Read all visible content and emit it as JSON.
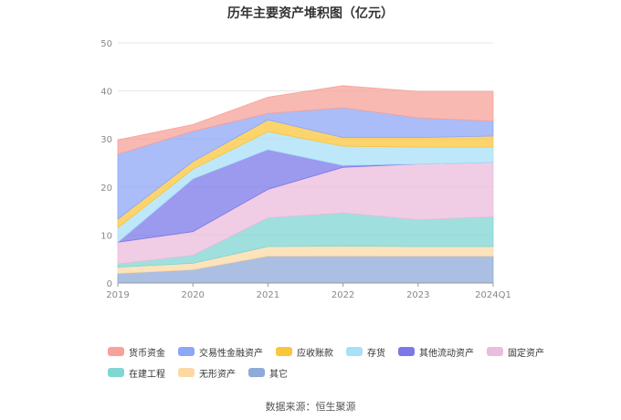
{
  "chart_data": {
    "type": "area",
    "stacked": true,
    "title": "历年主要资产堆积图（亿元）",
    "categories": [
      "2019",
      "2020",
      "2021",
      "2022",
      "2023",
      "2024Q1"
    ],
    "yticks": [
      0,
      10,
      20,
      30,
      40,
      50
    ],
    "ylim": [
      0,
      50
    ],
    "grid": true,
    "legend_position": "bottom",
    "series": [
      {
        "name": "其它",
        "color": "#8eaad8",
        "values": [
          2.0,
          2.8,
          5.6,
          5.6,
          5.6,
          5.6
        ]
      },
      {
        "name": "无形资产",
        "color": "#fcd9a4",
        "values": [
          1.3,
          1.3,
          2.0,
          2.1,
          2.0,
          2.0
        ]
      },
      {
        "name": "在建工程",
        "color": "#7fd6d3",
        "values": [
          0.7,
          1.7,
          6.0,
          6.9,
          5.6,
          6.2
        ]
      },
      {
        "name": "固定资产",
        "color": "#ecbcdc",
        "values": [
          4.5,
          4.9,
          5.9,
          9.5,
          11.6,
          11.3
        ]
      },
      {
        "name": "其他流动资产",
        "color": "#7b78e8",
        "values": [
          0.0,
          11.0,
          8.3,
          0.4,
          0.0,
          0.0
        ]
      },
      {
        "name": "存货",
        "color": "#a8e0f8",
        "values": [
          3.0,
          2.0,
          3.7,
          4.0,
          3.5,
          3.2
        ]
      },
      {
        "name": "应收账款",
        "color": "#fbc53d",
        "values": [
          1.8,
          1.6,
          2.5,
          1.8,
          2.0,
          2.3
        ]
      },
      {
        "name": "交易性金融资产",
        "color": "#8da7f7",
        "values": [
          13.5,
          6.3,
          1.3,
          6.2,
          4.1,
          3.1
        ]
      },
      {
        "name": "货币资金",
        "color": "#f7a19a",
        "values": [
          3.0,
          1.4,
          3.4,
          4.6,
          5.5,
          6.2
        ]
      }
    ],
    "legend_order": [
      "货币资金",
      "交易性金融资产",
      "应收账款",
      "存货",
      "其他流动资产",
      "固定资产",
      "在建工程",
      "无形资产",
      "其它"
    ]
  },
  "source": "数据来源：恒生聚源"
}
